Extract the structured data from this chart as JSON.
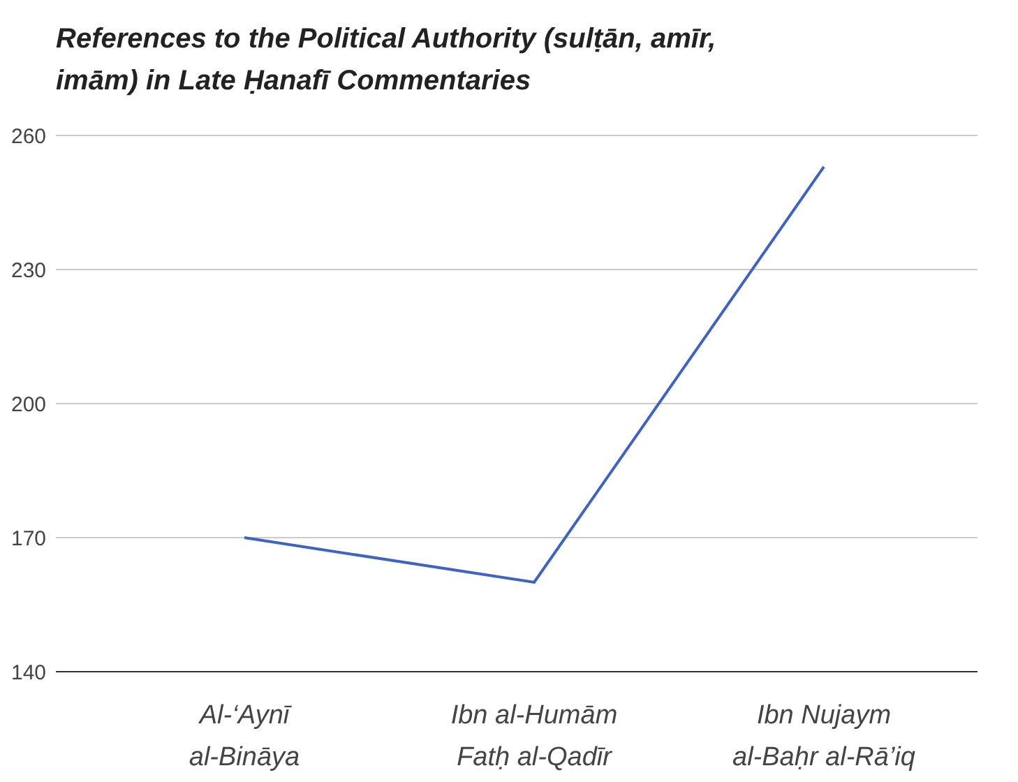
{
  "chart_data": {
    "type": "line",
    "title": "References to the Political Authority (sulṭān, amīr, imām) in Late Ḥanafī Commentaries",
    "categories": [
      "Al-‘Aynī\nal-Bināya",
      "Ibn al-Humām\nFatḥ al-Qadīr",
      "Ibn Nujaym\nal-Baḥr al-Rā’iq"
    ],
    "series": [
      {
        "color": "#3e63c0",
        "values": [
          170,
          160,
          253
        ]
      }
    ],
    "ylim": [
      140,
      260
    ],
    "yticks": [
      140,
      170,
      200,
      230,
      260
    ],
    "grid": "y",
    "marker": "none",
    "line_style": "solid"
  }
}
